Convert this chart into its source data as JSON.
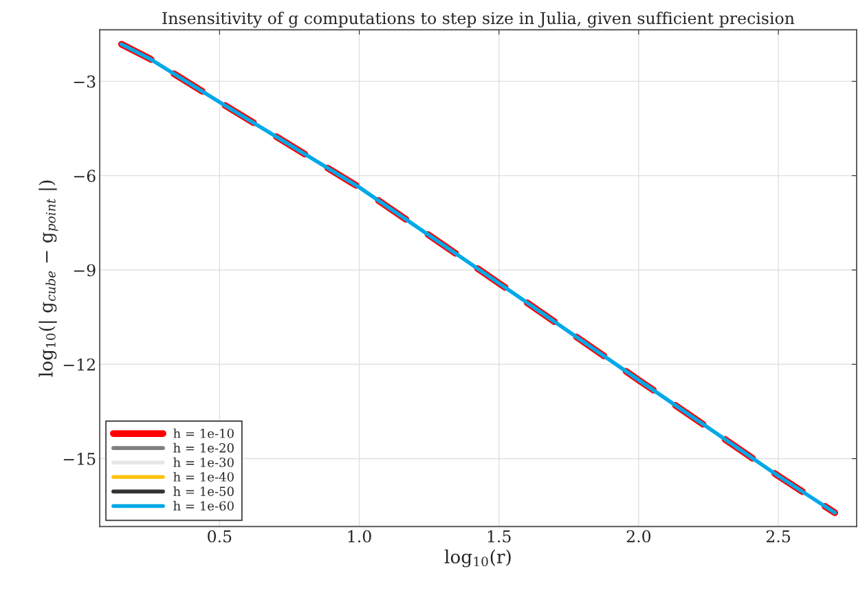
{
  "chart_data": {
    "type": "line",
    "title": "Insensitivity of g computations to step size in Julia, given sufficient precision",
    "xlabel": "log$_{10}$(r)",
    "ylabel": "log$_{10}$(| g$_{cube}$ − g$_{point}$ |)",
    "x": [
      0.149,
      0.25,
      0.5,
      1.0,
      1.5,
      2.0,
      2.5,
      2.702
    ],
    "series": [
      {
        "name": "h = 1e-10",
        "color": "#ff0000",
        "line_style": "dashed",
        "values": [
          -1.82,
          -2.28,
          -3.66,
          -6.37,
          -9.42,
          -12.5,
          -15.55,
          -16.72
        ]
      },
      {
        "name": "h = 1e-20",
        "color": "#808080",
        "values": [
          null,
          null,
          null,
          null,
          null,
          null,
          null,
          null
        ]
      },
      {
        "name": "h = 1e-30",
        "color": "#e6e6e6",
        "values": [
          null,
          null,
          null,
          null,
          null,
          null,
          null,
          null
        ]
      },
      {
        "name": "h = 1e-40",
        "color": "#ffc20e",
        "values": [
          null,
          null,
          null,
          null,
          null,
          null,
          null,
          null
        ]
      },
      {
        "name": "h = 1e-50",
        "color": "#333333",
        "values": [
          null,
          null,
          null,
          null,
          null,
          null,
          null,
          null
        ]
      },
      {
        "name": "h = 1e-60",
        "color": "#00a8e6",
        "values": [
          -1.82,
          -2.28,
          -3.66,
          -6.37,
          -9.42,
          -12.5,
          -15.55,
          -16.72
        ]
      }
    ],
    "xlim": [
      0.071,
      2.78
    ],
    "ylim": [
      -17.16,
      -1.36
    ],
    "xticks": [
      {
        "value": 0.5,
        "label": "0.5"
      },
      {
        "value": 1.0,
        "label": "1.0"
      },
      {
        "value": 1.5,
        "label": "1.5"
      },
      {
        "value": 2.0,
        "label": "2.0"
      },
      {
        "value": 2.5,
        "label": "2.5"
      }
    ],
    "yticks": [
      {
        "value": -3,
        "label": "−3"
      },
      {
        "value": -6,
        "label": "−6"
      },
      {
        "value": -9,
        "label": "−9"
      },
      {
        "value": -12,
        "label": "−12"
      },
      {
        "value": -15,
        "label": "−15"
      }
    ],
    "grid": true,
    "legend": "bottom left"
  }
}
